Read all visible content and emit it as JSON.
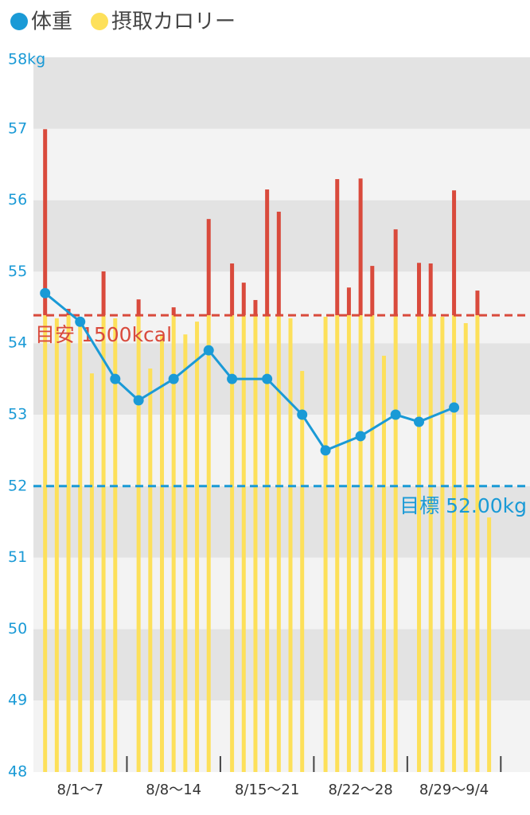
{
  "chart_data": {
    "type": "combo",
    "x": [
      0,
      1,
      2,
      3,
      4,
      5,
      6,
      8,
      9,
      10,
      11,
      12,
      13,
      14,
      16,
      17,
      18,
      19,
      20,
      21,
      22,
      24,
      25,
      26,
      27,
      28,
      29,
      30,
      32,
      33,
      34,
      35,
      36,
      37,
      38
    ],
    "xlim": [
      -1,
      41.5
    ],
    "xticks": [
      {
        "value": 3,
        "label": "8/1〜7"
      },
      {
        "value": 11,
        "label": "8/8〜14"
      },
      {
        "value": 19,
        "label": "8/15〜21"
      },
      {
        "value": 27,
        "label": "8/22〜28"
      },
      {
        "value": 35,
        "label": "8/29〜9/4"
      }
    ],
    "ylim": [
      48,
      58
    ],
    "yticks": [
      48,
      49,
      50,
      51,
      52,
      53,
      54,
      55,
      56,
      57,
      {
        "value": 58,
        "label": "58kg"
      }
    ],
    "y2lim": [
      0,
      2347
    ],
    "series": [
      {
        "name": "体重",
        "type": "line",
        "color": "#1a9ad6",
        "x": [
          0,
          3,
          6,
          8,
          11,
          14,
          16,
          19,
          22,
          24,
          27,
          30,
          32,
          35
        ],
        "values": [
          54.7,
          54.3,
          53.5,
          53.2,
          53.5,
          53.9,
          53.5,
          53.5,
          53.0,
          52.5,
          52.7,
          53.0,
          52.9,
          53.1
        ]
      },
      {
        "name": "摂取カロリー",
        "type": "bar",
        "axis": "y2",
        "color": "#fde05a",
        "values": [
          2111,
          1490,
          1521,
          1495,
          1309,
          1644,
          1490,
          1552,
          1325,
          1437,
          1526,
          1437,
          1479,
          1816,
          1670,
          1607,
          1550,
          1913,
          1840,
          1490,
          1317,
          1495,
          1947,
          1591,
          1949,
          1662,
          1367,
          1782,
          1672,
          1670,
          1495,
          1910,
          1474,
          1581,
          836
        ]
      }
    ],
    "reference_lines": [
      {
        "value": 1500,
        "axis": "y2",
        "label": "目安 1500kcal",
        "color": "#d94a3c"
      },
      {
        "value": 52,
        "axis": "y",
        "label": "目標 52.00kg",
        "color": "#1a9ad6"
      }
    ],
    "grid": true
  }
}
